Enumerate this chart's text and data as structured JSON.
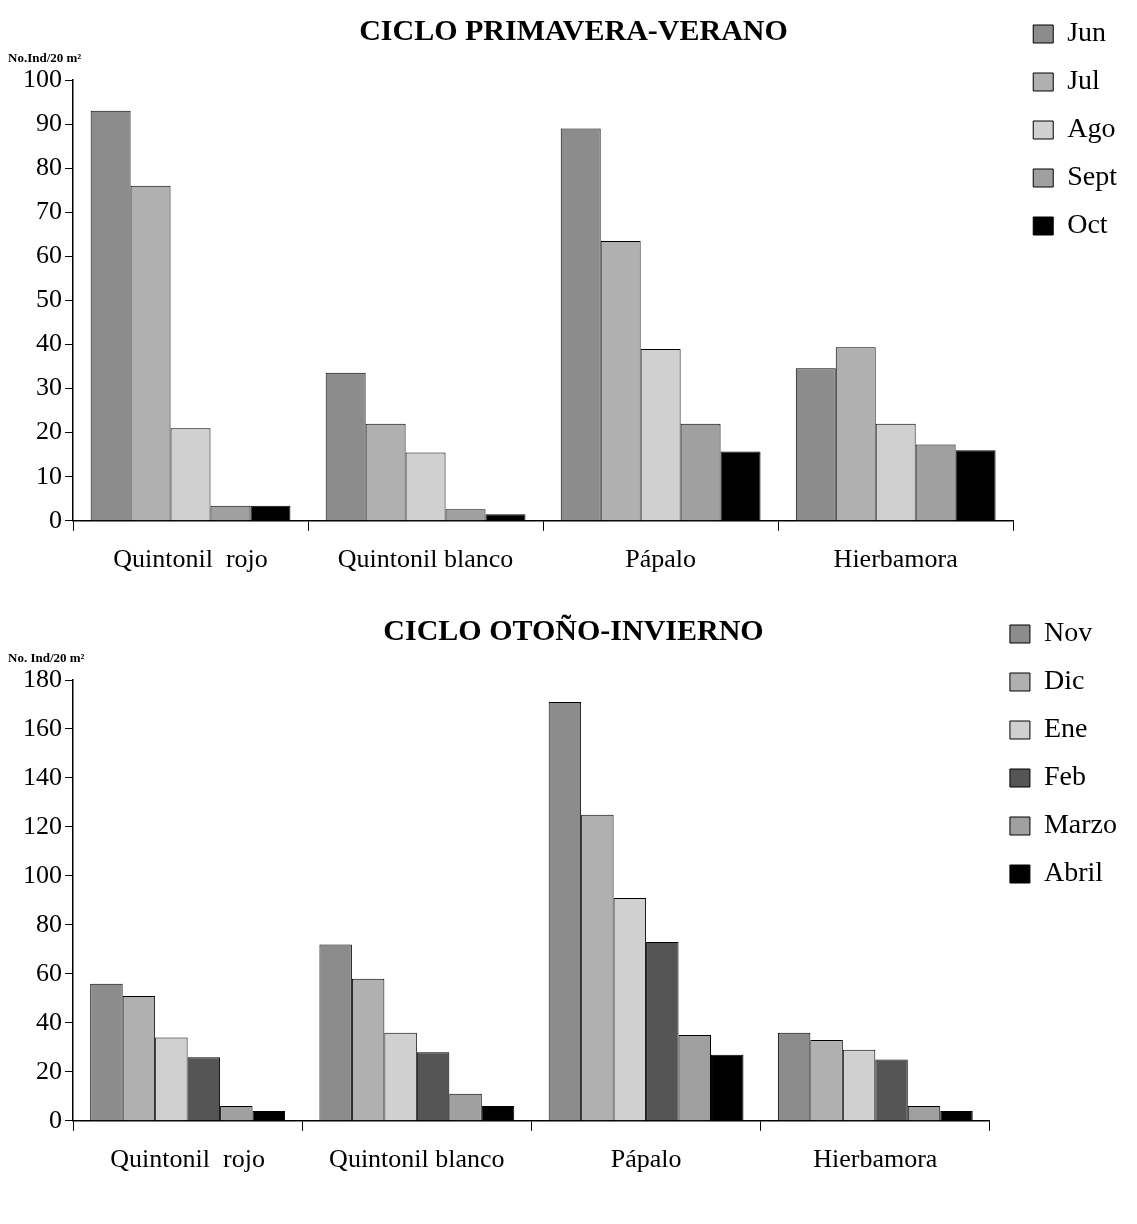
{
  "chart_data": [
    {
      "type": "bar",
      "title": "CICLO PRIMAVERA-VERANO",
      "ylabel": "No.Ind/20 m²",
      "categories": [
        "Quintonil  rojo",
        "Quintonil blanco",
        "Pápalo",
        "Hierbamora"
      ],
      "ylim": [
        0,
        100
      ],
      "yticks": [
        0,
        10,
        20,
        30,
        40,
        50,
        60,
        70,
        80,
        90,
        100
      ],
      "grid": false,
      "legend": "right",
      "series": [
        {
          "name": "Jun",
          "color": "#8c8c8c",
          "values": [
            93,
            33.6,
            89,
            34.6
          ]
        },
        {
          "name": "Jul",
          "color": "#b0b0b0",
          "values": [
            76,
            22,
            63.5,
            39.4
          ]
        },
        {
          "name": "Ago",
          "color": "#d0d0d0",
          "values": [
            21,
            15.5,
            39,
            22
          ]
        },
        {
          "name": "Sept",
          "color": "#a0a0a0",
          "values": [
            3.4,
            2.6,
            22,
            17.3
          ]
        },
        {
          "name": "Oct",
          "color": "#000000",
          "values": [
            3.4,
            1.5,
            15.7,
            16
          ]
        }
      ]
    },
    {
      "type": "bar",
      "title": "CICLO OTOÑO-INVIERNO",
      "ylabel": "No. Ind/20 m²",
      "categories": [
        "Quintonil  rojo",
        "Quintonil blanco",
        "Pápalo",
        "Hierbamora"
      ],
      "ylim": [
        0,
        180
      ],
      "yticks": [
        0,
        20,
        40,
        60,
        80,
        100,
        120,
        140,
        160,
        180
      ],
      "grid": false,
      "legend": "right",
      "series": [
        {
          "name": "Nov",
          "color": "#8c8c8c",
          "values": [
            56,
            72,
            171,
            36
          ]
        },
        {
          "name": "Dic",
          "color": "#b0b0b0",
          "values": [
            51,
            58,
            125,
            33
          ]
        },
        {
          "name": "Ene",
          "color": "#d0d0d0",
          "values": [
            34,
            36,
            91,
            29
          ]
        },
        {
          "name": "Feb",
          "color": "#555555",
          "values": [
            26,
            28,
            73,
            25
          ]
        },
        {
          "name": "Marzo",
          "color": "#a0a0a0",
          "values": [
            6,
            11,
            35,
            6
          ]
        },
        {
          "name": "Abril",
          "color": "#000000",
          "values": [
            4,
            6,
            27,
            4
          ]
        }
      ]
    }
  ]
}
